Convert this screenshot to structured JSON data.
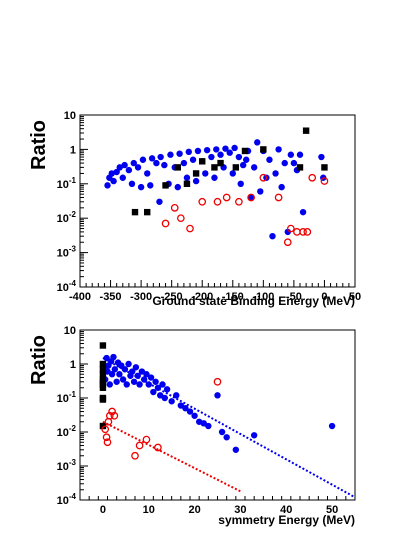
{
  "chart_data": [
    {
      "type": "scatter",
      "title": "",
      "xlabel": "Ground state Binding Energy (MeV)",
      "ylabel": "Ratio",
      "xlim": [
        -400,
        50
      ],
      "ylim": [
        0.0001,
        10
      ],
      "yscale": "log",
      "grid": false,
      "x_ticks": [
        "-400",
        "-350",
        "-300",
        "-250",
        "-200",
        "-150",
        "-100",
        "-50",
        "0",
        "50"
      ],
      "y_ticks": [
        {
          "base": "10",
          "exp": "-4",
          "value": 0.0001
        },
        {
          "base": "10",
          "exp": "-3",
          "value": 0.001
        },
        {
          "base": "10",
          "exp": "-2",
          "value": 0.01
        },
        {
          "base": "10",
          "exp": "-1",
          "value": 0.1
        },
        {
          "base": "1",
          "exp": "",
          "value": 1
        },
        {
          "base": "10",
          "exp": "",
          "value": 10
        }
      ],
      "series": [
        {
          "marker": "filled-circle",
          "color": "#0000ee",
          "points": [
            {
              "x": -355,
              "y": 0.09
            },
            {
              "x": -352,
              "y": 0.15
            },
            {
              "x": -348,
              "y": 0.2
            },
            {
              "x": -345,
              "y": 0.12
            },
            {
              "x": -340,
              "y": 0.22
            },
            {
              "x": -335,
              "y": 0.3
            },
            {
              "x": -330,
              "y": 0.15
            },
            {
              "x": -327,
              "y": 0.35
            },
            {
              "x": -320,
              "y": 0.25
            },
            {
              "x": -315,
              "y": 0.1
            },
            {
              "x": -312,
              "y": 0.4
            },
            {
              "x": -305,
              "y": 0.3
            },
            {
              "x": -300,
              "y": 0.08
            },
            {
              "x": -297,
              "y": 0.5
            },
            {
              "x": -290,
              "y": 0.2
            },
            {
              "x": -285,
              "y": 0.09
            },
            {
              "x": -282,
              "y": 0.55
            },
            {
              "x": -275,
              "y": 0.4
            },
            {
              "x": -270,
              "y": 0.03
            },
            {
              "x": -268,
              "y": 0.6
            },
            {
              "x": -262,
              "y": 0.35
            },
            {
              "x": -255,
              "y": 0.1
            },
            {
              "x": -252,
              "y": 0.7
            },
            {
              "x": -245,
              "y": 0.3
            },
            {
              "x": -240,
              "y": 0.08
            },
            {
              "x": -237,
              "y": 0.75
            },
            {
              "x": -230,
              "y": 0.4
            },
            {
              "x": -225,
              "y": 0.15
            },
            {
              "x": -222,
              "y": 0.85
            },
            {
              "x": -215,
              "y": 0.5
            },
            {
              "x": -210,
              "y": 0.12
            },
            {
              "x": -207,
              "y": 0.9
            },
            {
              "x": -200,
              "y": 0.45
            },
            {
              "x": -195,
              "y": 0.2
            },
            {
              "x": -192,
              "y": 0.95
            },
            {
              "x": -185,
              "y": 0.6
            },
            {
              "x": -180,
              "y": 0.15
            },
            {
              "x": -177,
              "y": 1.0
            },
            {
              "x": -170,
              "y": 0.7
            },
            {
              "x": -165,
              "y": 0.3
            },
            {
              "x": -162,
              "y": 1.05
            },
            {
              "x": -155,
              "y": 0.8
            },
            {
              "x": -150,
              "y": 0.2
            },
            {
              "x": -147,
              "y": 1.1
            },
            {
              "x": -140,
              "y": 0.6
            },
            {
              "x": -137,
              "y": 0.1
            },
            {
              "x": -133,
              "y": 0.35
            },
            {
              "x": -128,
              "y": 0.5
            },
            {
              "x": -125,
              "y": 0.9
            },
            {
              "x": -120,
              "y": 0.04
            },
            {
              "x": -115,
              "y": 0.3
            },
            {
              "x": -110,
              "y": 1.6
            },
            {
              "x": -105,
              "y": 0.06
            },
            {
              "x": -100,
              "y": 0.9
            },
            {
              "x": -95,
              "y": 0.15
            },
            {
              "x": -90,
              "y": 0.5
            },
            {
              "x": -85,
              "y": 0.003
            },
            {
              "x": -80,
              "y": 0.2
            },
            {
              "x": -75,
              "y": 1.0
            },
            {
              "x": -70,
              "y": 0.08
            },
            {
              "x": -65,
              "y": 0.4
            },
            {
              "x": -60,
              "y": 0.004
            },
            {
              "x": -55,
              "y": 0.7
            },
            {
              "x": -50,
              "y": 0.4
            },
            {
              "x": -45,
              "y": 0.25
            },
            {
              "x": -40,
              "y": 0.7
            },
            {
              "x": -35,
              "y": 0.015
            },
            {
              "x": -5,
              "y": 0.6
            },
            {
              "x": -2,
              "y": 0.15
            }
          ]
        },
        {
          "marker": "filled-square",
          "color": "#000000",
          "points": [
            {
              "x": -310,
              "y": 0.015
            },
            {
              "x": -290,
              "y": 0.015
            },
            {
              "x": -260,
              "y": 0.09
            },
            {
              "x": -240,
              "y": 0.3
            },
            {
              "x": -225,
              "y": 0.1
            },
            {
              "x": -210,
              "y": 0.2
            },
            {
              "x": -200,
              "y": 0.45
            },
            {
              "x": -180,
              "y": 0.3
            },
            {
              "x": -170,
              "y": 0.4
            },
            {
              "x": -145,
              "y": 0.3
            },
            {
              "x": -130,
              "y": 0.9
            },
            {
              "x": -100,
              "y": 1.0
            },
            {
              "x": -40,
              "y": 0.3
            },
            {
              "x": -30,
              "y": 3.5
            },
            {
              "x": 0,
              "y": 0.3
            }
          ]
        },
        {
          "marker": "open-circle",
          "color": "#ee0000",
          "points": [
            {
              "x": -260,
              "y": 0.007
            },
            {
              "x": -245,
              "y": 0.02
            },
            {
              "x": -235,
              "y": 0.01
            },
            {
              "x": -220,
              "y": 0.005
            },
            {
              "x": -200,
              "y": 0.03
            },
            {
              "x": -175,
              "y": 0.03
            },
            {
              "x": -160,
              "y": 0.04
            },
            {
              "x": -140,
              "y": 0.03
            },
            {
              "x": -120,
              "y": 0.04
            },
            {
              "x": -100,
              "y": 0.15
            },
            {
              "x": -75,
              "y": 0.04
            },
            {
              "x": -60,
              "y": 0.002
            },
            {
              "x": -55,
              "y": 0.005
            },
            {
              "x": -45,
              "y": 0.004
            },
            {
              "x": -35,
              "y": 0.004
            },
            {
              "x": -28,
              "y": 0.004
            },
            {
              "x": -20,
              "y": 0.15
            },
            {
              "x": 0,
              "y": 0.12
            }
          ]
        }
      ]
    },
    {
      "type": "scatter",
      "title": "",
      "xlabel": "symmetry Energy (MeV)",
      "ylabel": "Ratio",
      "xlim": [
        -5,
        55
      ],
      "ylim": [
        0.0001,
        10
      ],
      "yscale": "log",
      "grid": false,
      "x_ticks": [
        "0",
        "10",
        "20",
        "30",
        "40",
        "50"
      ],
      "y_ticks": [
        {
          "base": "10",
          "exp": "-4",
          "value": 0.0001
        },
        {
          "base": "10",
          "exp": "-3",
          "value": 0.001
        },
        {
          "base": "10",
          "exp": "-2",
          "value": 0.01
        },
        {
          "base": "10",
          "exp": "-1",
          "value": 0.1
        },
        {
          "base": "1",
          "exp": "",
          "value": 1
        },
        {
          "base": "10",
          "exp": "",
          "value": 10
        }
      ],
      "series": [
        {
          "marker": "filled-circle",
          "color": "#0000ee",
          "points": [
            {
              "x": 0.2,
              "y": 0.8
            },
            {
              "x": 0.5,
              "y": 0.35
            },
            {
              "x": 0.8,
              "y": 1.5
            },
            {
              "x": 1,
              "y": 0.6
            },
            {
              "x": 1.2,
              "y": 0.9
            },
            {
              "x": 1.5,
              "y": 0.25
            },
            {
              "x": 1.8,
              "y": 1.2
            },
            {
              "x": 2,
              "y": 0.5
            },
            {
              "x": 2.3,
              "y": 1.6
            },
            {
              "x": 2.6,
              "y": 0.7
            },
            {
              "x": 3,
              "y": 0.3
            },
            {
              "x": 3.3,
              "y": 1.1
            },
            {
              "x": 3.6,
              "y": 0.5
            },
            {
              "x": 4,
              "y": 0.9
            },
            {
              "x": 4.4,
              "y": 0.35
            },
            {
              "x": 4.8,
              "y": 0.7
            },
            {
              "x": 5.2,
              "y": 0.25
            },
            {
              "x": 5.6,
              "y": 1.0
            },
            {
              "x": 6,
              "y": 0.45
            },
            {
              "x": 6.4,
              "y": 0.6
            },
            {
              "x": 6.8,
              "y": 0.3
            },
            {
              "x": 7.2,
              "y": 0.8
            },
            {
              "x": 7.6,
              "y": 0.45
            },
            {
              "x": 8,
              "y": 0.25
            },
            {
              "x": 8.5,
              "y": 0.6
            },
            {
              "x": 9,
              "y": 0.35
            },
            {
              "x": 9.5,
              "y": 0.5
            },
            {
              "x": 10,
              "y": 0.25
            },
            {
              "x": 10.5,
              "y": 0.4
            },
            {
              "x": 11,
              "y": 0.15
            },
            {
              "x": 11.5,
              "y": 0.3
            },
            {
              "x": 12,
              "y": 0.2
            },
            {
              "x": 12.5,
              "y": 0.12
            },
            {
              "x": 13,
              "y": 0.25
            },
            {
              "x": 13.5,
              "y": 0.1
            },
            {
              "x": 14,
              "y": 0.18
            },
            {
              "x": 15,
              "y": 0.08
            },
            {
              "x": 16,
              "y": 0.12
            },
            {
              "x": 17,
              "y": 0.06
            },
            {
              "x": 18,
              "y": 0.05
            },
            {
              "x": 19,
              "y": 0.04
            },
            {
              "x": 20,
              "y": 0.03
            },
            {
              "x": 21,
              "y": 0.02
            },
            {
              "x": 22,
              "y": 0.018
            },
            {
              "x": 23,
              "y": 0.015
            },
            {
              "x": 25,
              "y": 0.12
            },
            {
              "x": 26,
              "y": 0.01
            },
            {
              "x": 27,
              "y": 0.007
            },
            {
              "x": 29,
              "y": 0.003
            },
            {
              "x": 33,
              "y": 0.008
            },
            {
              "x": 50,
              "y": 0.015
            }
          ]
        },
        {
          "marker": "filled-square",
          "color": "#000000",
          "points": [
            {
              "x": 0,
              "y": 3.5
            },
            {
              "x": 0,
              "y": 1.0
            },
            {
              "x": 0,
              "y": 0.7
            },
            {
              "x": 0,
              "y": 0.5
            },
            {
              "x": 0,
              "y": 0.35
            },
            {
              "x": 0,
              "y": 0.3
            },
            {
              "x": 0,
              "y": 0.25
            },
            {
              "x": 0,
              "y": 0.2
            },
            {
              "x": 0,
              "y": 0.1
            },
            {
              "x": 0,
              "y": 0.09
            },
            {
              "x": 0,
              "y": 0.015
            }
          ]
        },
        {
          "marker": "open-circle",
          "color": "#ee0000",
          "points": [
            {
              "x": 0.5,
              "y": 0.012
            },
            {
              "x": 0.8,
              "y": 0.007
            },
            {
              "x": 1,
              "y": 0.005
            },
            {
              "x": 1.2,
              "y": 0.02
            },
            {
              "x": 1.5,
              "y": 0.03
            },
            {
              "x": 2,
              "y": 0.04
            },
            {
              "x": 2.5,
              "y": 0.03
            },
            {
              "x": 7,
              "y": 0.002
            },
            {
              "x": 8,
              "y": 0.004
            },
            {
              "x": 9.5,
              "y": 0.006
            },
            {
              "x": 12,
              "y": 0.0035
            },
            {
              "x": 25,
              "y": 0.3
            }
          ]
        }
      ],
      "fit_lines": [
        {
          "color": "#ee0000",
          "style": "dotted",
          "from": {
            "x": 0,
            "y": 0.02
          },
          "to": {
            "x": 30,
            "y": 0.00018
          }
        },
        {
          "color": "#0000ee",
          "style": "dotted",
          "from": {
            "x": 0,
            "y": 1.5
          },
          "to": {
            "x": 55,
            "y": 0.00012
          }
        }
      ]
    }
  ]
}
